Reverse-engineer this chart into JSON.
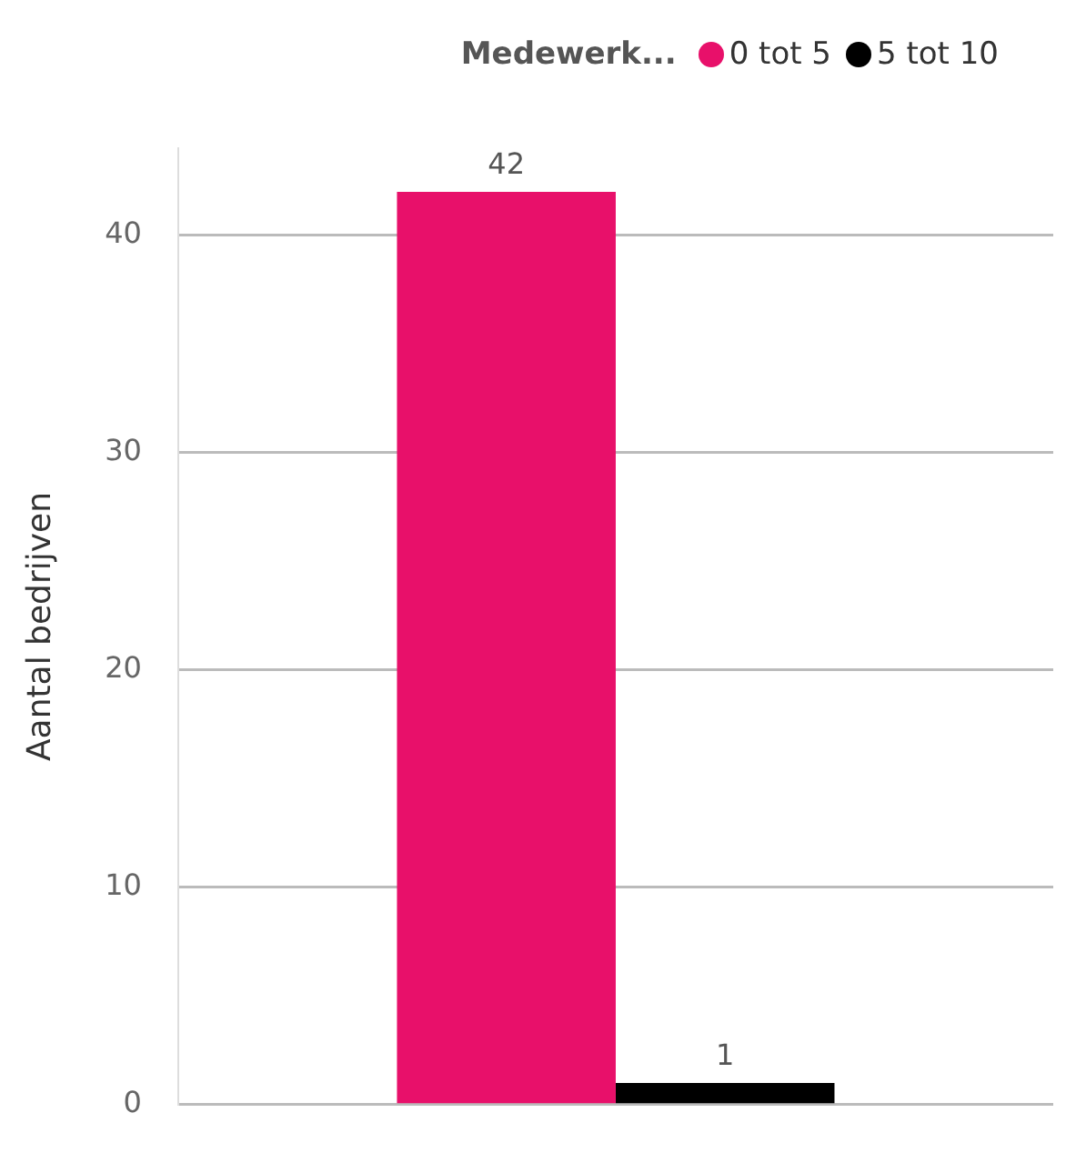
{
  "chart_data": {
    "type": "bar",
    "ylabel": "Aantal bedrijven",
    "legend_title": "Medewerk...",
    "categories": [
      null
    ],
    "series": [
      {
        "name": "0 tot 5",
        "color": "#e8106a",
        "values": [
          42
        ]
      },
      {
        "name": "5 tot 10",
        "color": "#000000",
        "values": [
          1
        ]
      }
    ],
    "ylim": [
      0,
      44
    ],
    "yticks": [
      0,
      10,
      20,
      30,
      40
    ],
    "grid": "y",
    "legend": "top right",
    "tick_labels": "y",
    "data_labels": true
  }
}
